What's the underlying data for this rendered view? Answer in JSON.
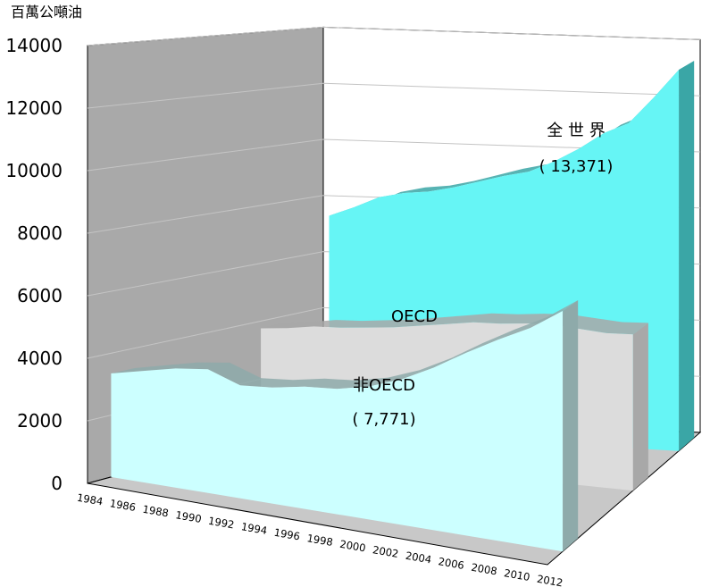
{
  "chart_data": {
    "type": "area",
    "subtype": "3d-stacked-depth",
    "unit_label": "百萬公噸油",
    "y_ticks": [
      "0",
      "2000",
      "4000",
      "6000",
      "8000",
      "10000",
      "12000",
      "14000"
    ],
    "ylim": [
      0,
      14000
    ],
    "x_ticks": [
      "1984",
      "1986",
      "1988",
      "1990",
      "1992",
      "1994",
      "1996",
      "1998",
      "2000",
      "2002",
      "2004",
      "2006",
      "2008",
      "2010",
      "2012"
    ],
    "x_range": [
      1984,
      2012
    ],
    "grid": true,
    "colors": {
      "world": "#66f5f5",
      "world_side": "#3aa6a6",
      "oecd": "#dcdcdc",
      "oecd_side": "#a8a8a8",
      "non_oecd": "#ccffff",
      "non_oecd_side": "#8eaaaa",
      "back_wall": "#a9a9a9",
      "floor": "#c8c8c8"
    },
    "series": [
      {
        "key": "non_oecd",
        "name": "非OECD",
        "value_label": "( 7,771)",
        "x": [
          1984,
          1986,
          1988,
          1990,
          1992,
          1994,
          1996,
          1998,
          2000,
          2002,
          2004,
          2006,
          2008,
          2010,
          2012
        ],
        "values": [
          3350,
          3600,
          3850,
          4000,
          3650,
          3750,
          3950,
          4050,
          4300,
          4700,
          5250,
          5900,
          6500,
          7050,
          7771
        ]
      },
      {
        "key": "oecd",
        "name": "OECD",
        "x": [
          1984,
          1986,
          1988,
          1990,
          1992,
          1994,
          1996,
          1998,
          2000,
          2002,
          2004,
          2006,
          2008,
          2010,
          2012
        ],
        "values": [
          4200,
          4300,
          4450,
          4500,
          4600,
          4700,
          4850,
          5000,
          5150,
          5200,
          5300,
          5350,
          5300,
          5250,
          5300
        ]
      },
      {
        "key": "world",
        "name": "全 世 界",
        "value_label": "( 13,371)",
        "x": [
          1984,
          1986,
          1988,
          1990,
          1992,
          1994,
          1996,
          1998,
          2000,
          2002,
          2004,
          2006,
          2008,
          2010,
          2012
        ],
        "values": [
          7550,
          7900,
          8300,
          8500,
          8600,
          8800,
          9050,
          9300,
          9500,
          9900,
          10400,
          11000,
          11400,
          12350,
          13371
        ]
      }
    ]
  }
}
